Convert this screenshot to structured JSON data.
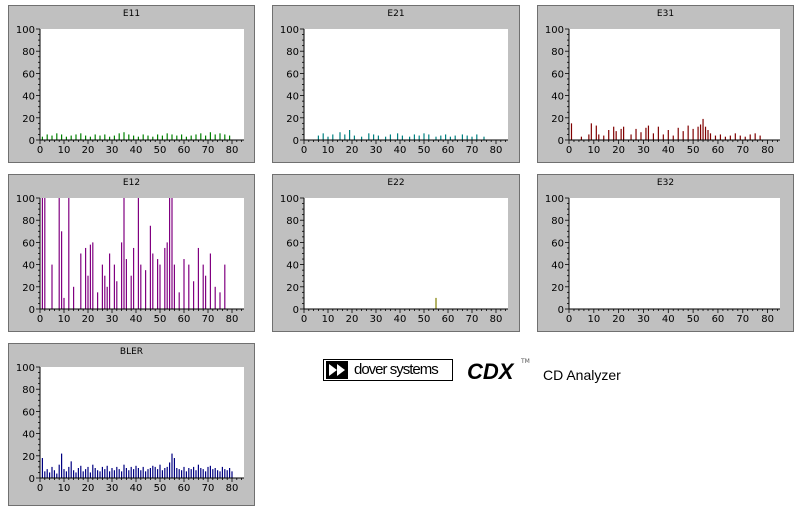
{
  "brand": {
    "company": "dover systems",
    "product_code": "CDX",
    "trademark": "TM",
    "product_name": "CD Analyzer"
  },
  "chart_data": [
    {
      "type": "bar",
      "title": "E11",
      "color": "#008000",
      "xlim": [
        0,
        85
      ],
      "ylim": [
        0,
        100
      ],
      "xticks": [
        0,
        10,
        20,
        30,
        40,
        50,
        60,
        70,
        80
      ],
      "yticks": [
        0,
        20,
        40,
        60,
        80,
        100
      ],
      "x": [
        1,
        3,
        5,
        7,
        9,
        11,
        13,
        15,
        17,
        19,
        21,
        23,
        25,
        27,
        29,
        31,
        33,
        35,
        37,
        39,
        41,
        43,
        45,
        47,
        49,
        51,
        53,
        55,
        57,
        59,
        61,
        63,
        65,
        67,
        69,
        71,
        73,
        75,
        77,
        79
      ],
      "values": [
        3,
        5,
        4,
        6,
        5,
        3,
        4,
        5,
        6,
        4,
        3,
        5,
        4,
        5,
        3,
        4,
        6,
        7,
        5,
        4,
        3,
        5,
        4,
        3,
        5,
        4,
        6,
        5,
        4,
        5,
        3,
        4,
        5,
        6,
        4,
        7,
        5,
        6,
        5,
        4
      ]
    },
    {
      "type": "bar",
      "title": "E21",
      "color": "#008080",
      "xlim": [
        0,
        85
      ],
      "ylim": [
        0,
        100
      ],
      "xticks": [
        0,
        10,
        20,
        30,
        40,
        50,
        60,
        70,
        80
      ],
      "yticks": [
        0,
        20,
        40,
        60,
        80,
        100
      ],
      "x": [
        6,
        8,
        10,
        12,
        15,
        17,
        19,
        21,
        24,
        27,
        29,
        31,
        34,
        36,
        39,
        41,
        44,
        46,
        48,
        50,
        52,
        55,
        57,
        59,
        61,
        63,
        66,
        68,
        70,
        72,
        75
      ],
      "values": [
        4,
        6,
        3,
        5,
        7,
        5,
        9,
        4,
        3,
        6,
        5,
        4,
        3,
        5,
        6,
        4,
        3,
        5,
        4,
        6,
        5,
        3,
        4,
        5,
        3,
        4,
        5,
        4,
        3,
        5,
        3
      ]
    },
    {
      "type": "bar",
      "title": "E31",
      "color": "#800000",
      "xlim": [
        0,
        85
      ],
      "ylim": [
        0,
        100
      ],
      "xticks": [
        0,
        10,
        20,
        30,
        40,
        50,
        60,
        70,
        80
      ],
      "yticks": [
        0,
        20,
        40,
        60,
        80,
        100
      ],
      "x": [
        1,
        5,
        8,
        9,
        11,
        12,
        14,
        16,
        18,
        19,
        21,
        22,
        25,
        27,
        29,
        31,
        32,
        34,
        36,
        38,
        40,
        42,
        44,
        46,
        48,
        50,
        52,
        53,
        54,
        55,
        56,
        57,
        59,
        61,
        63,
        65,
        67,
        69,
        71,
        73,
        75,
        77
      ],
      "values": [
        15,
        3,
        5,
        15,
        13,
        5,
        4,
        9,
        12,
        8,
        10,
        12,
        5,
        10,
        7,
        11,
        13,
        6,
        12,
        5,
        9,
        4,
        11,
        8,
        13,
        10,
        12,
        14,
        19,
        12,
        9,
        6,
        4,
        5,
        3,
        4,
        6,
        4,
        3,
        5,
        6,
        4
      ]
    },
    {
      "type": "bar",
      "title": "E12",
      "color": "#800080",
      "xlim": [
        0,
        85
      ],
      "ylim": [
        0,
        100
      ],
      "xticks": [
        0,
        10,
        20,
        30,
        40,
        50,
        60,
        70,
        80
      ],
      "yticks": [
        0,
        20,
        40,
        60,
        80,
        100
      ],
      "x": [
        1,
        2,
        5,
        8,
        9,
        10,
        12,
        14,
        17,
        19,
        20,
        21,
        22,
        24,
        26,
        27,
        28,
        29,
        31,
        32,
        34,
        35,
        36,
        38,
        39,
        41,
        42,
        44,
        46,
        47,
        49,
        50,
        52,
        53,
        54,
        55,
        56,
        58,
        60,
        62,
        64,
        66,
        68,
        69,
        71,
        73,
        75,
        77
      ],
      "values": [
        100,
        100,
        40,
        100,
        70,
        10,
        100,
        20,
        50,
        55,
        30,
        58,
        60,
        15,
        40,
        30,
        20,
        50,
        40,
        25,
        60,
        100,
        45,
        30,
        55,
        100,
        40,
        35,
        75,
        50,
        45,
        40,
        55,
        60,
        100,
        100,
        40,
        15,
        45,
        40,
        25,
        55,
        40,
        30,
        50,
        20,
        15,
        40
      ]
    },
    {
      "type": "bar",
      "title": "E22",
      "color": "#808000",
      "xlim": [
        0,
        85
      ],
      "ylim": [
        0,
        100
      ],
      "xticks": [
        0,
        10,
        20,
        30,
        40,
        50,
        60,
        70,
        80
      ],
      "yticks": [
        0,
        20,
        40,
        60,
        80,
        100
      ],
      "x": [
        55
      ],
      "values": [
        10
      ]
    },
    {
      "type": "bar",
      "title": "E32",
      "color": "#000000",
      "xlim": [
        0,
        85
      ],
      "ylim": [
        0,
        100
      ],
      "xticks": [
        0,
        10,
        20,
        30,
        40,
        50,
        60,
        70,
        80
      ],
      "yticks": [
        0,
        20,
        40,
        60,
        80,
        100
      ],
      "x": [],
      "values": []
    },
    {
      "type": "bar",
      "title": "BLER",
      "color": "#000080",
      "xlim": [
        0,
        85
      ],
      "ylim": [
        0,
        100
      ],
      "xticks": [
        0,
        10,
        20,
        30,
        40,
        50,
        60,
        70,
        80
      ],
      "yticks": [
        0,
        20,
        40,
        60,
        80,
        100
      ],
      "x": [
        1,
        2,
        3,
        4,
        5,
        6,
        7,
        8,
        9,
        10,
        11,
        12,
        13,
        14,
        15,
        16,
        17,
        18,
        19,
        20,
        21,
        22,
        23,
        24,
        25,
        26,
        27,
        28,
        29,
        30,
        31,
        32,
        33,
        34,
        35,
        36,
        37,
        38,
        39,
        40,
        41,
        42,
        43,
        44,
        45,
        46,
        47,
        48,
        49,
        50,
        51,
        52,
        53,
        54,
        55,
        56,
        57,
        58,
        59,
        60,
        61,
        62,
        63,
        64,
        65,
        66,
        67,
        68,
        69,
        70,
        71,
        72,
        73,
        74,
        75,
        76,
        77,
        78,
        79,
        80
      ],
      "values": [
        18,
        6,
        8,
        5,
        10,
        7,
        4,
        12,
        22,
        8,
        6,
        10,
        15,
        7,
        5,
        9,
        11,
        6,
        8,
        10,
        5,
        12,
        9,
        7,
        6,
        10,
        8,
        11,
        6,
        9,
        7,
        10,
        8,
        6,
        12,
        9,
        7,
        10,
        8,
        11,
        9,
        7,
        10,
        6,
        8,
        9,
        11,
        10,
        8,
        12,
        7,
        9,
        10,
        14,
        22,
        18,
        9,
        8,
        7,
        10,
        6,
        9,
        8,
        10,
        7,
        12,
        9,
        8,
        6,
        10,
        11,
        8,
        9,
        7,
        6,
        10,
        8,
        7,
        9,
        6
      ]
    }
  ]
}
